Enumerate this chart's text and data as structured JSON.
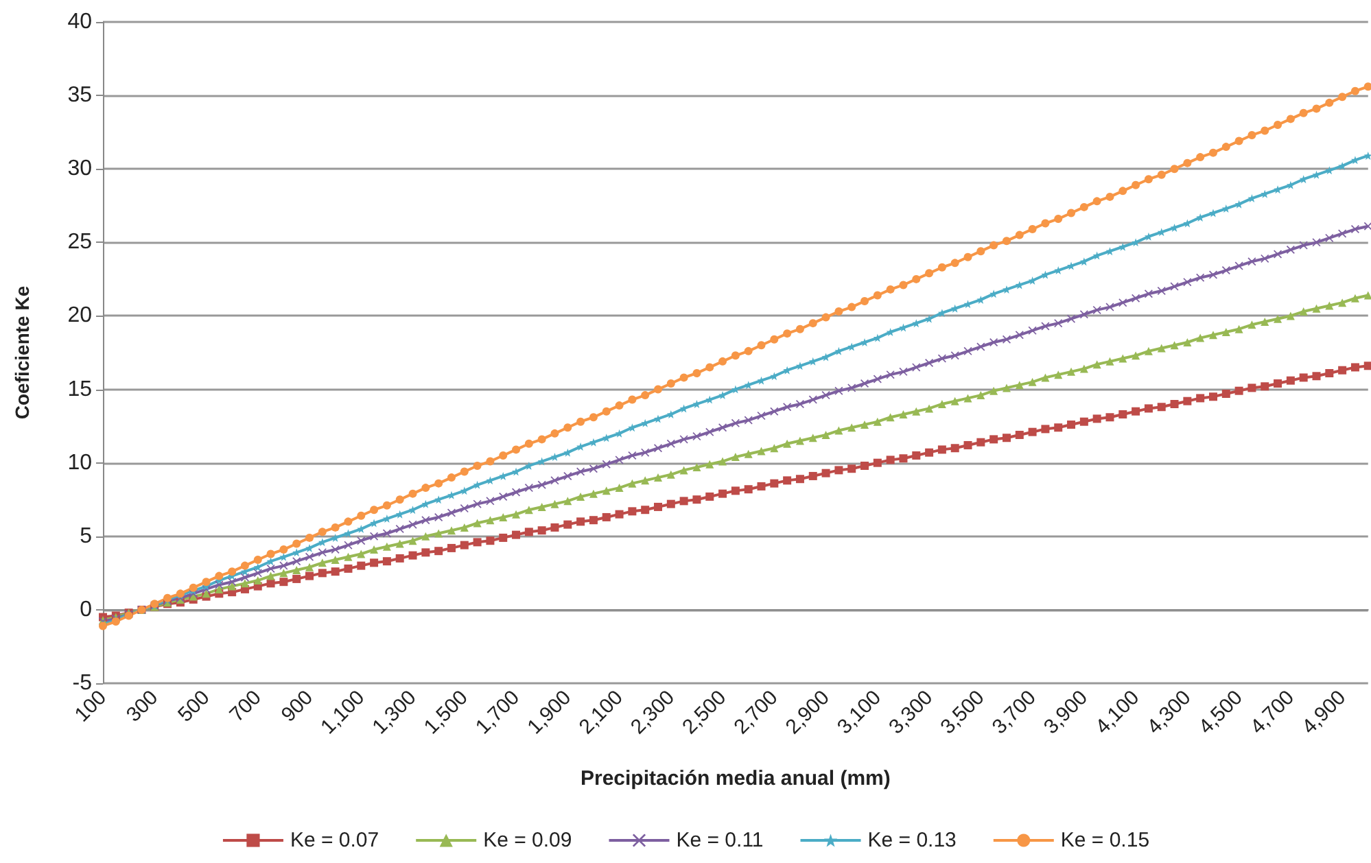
{
  "chart_data": {
    "type": "line",
    "xlabel": "Precipitación media anual (mm)",
    "ylabel": "Coeficiente Ke",
    "categories": [
      "100",
      null,
      null,
      null,
      "300",
      null,
      null,
      null,
      "500",
      null,
      null,
      null,
      "700",
      null,
      null,
      null,
      "900",
      null,
      null,
      null,
      "1,100",
      null,
      null,
      null,
      "1,300",
      null,
      null,
      null,
      "1,500",
      null,
      null,
      null,
      "1,700",
      null,
      null,
      null,
      "1,900",
      null,
      null,
      null,
      "2,100",
      null,
      null,
      null,
      "2,300",
      null,
      null,
      null,
      "2,500",
      null,
      null,
      null,
      "2,700",
      null,
      null,
      null,
      "2,900",
      null,
      null,
      null,
      "3,100",
      null,
      null,
      null,
      "3,300",
      null,
      null,
      null,
      "3,500",
      null,
      null,
      null,
      "3,700",
      null,
      null,
      null,
      "3,900",
      null,
      null,
      null,
      "4,100",
      null,
      null,
      null,
      "4,300",
      null,
      null,
      null,
      "4,500",
      null,
      null,
      null,
      "4,700",
      null,
      null,
      null,
      "4,900",
      null,
      null
    ],
    "ylim": [
      -5,
      40
    ],
    "yticks": [
      -5,
      0,
      5,
      10,
      15,
      20,
      25,
      30,
      35,
      40
    ],
    "grid": "y",
    "legend": "bottom",
    "series": [
      {
        "name": "Ke = 0.07",
        "color": "#be4b48",
        "marker": "square",
        "values": [
          -0.5,
          -0.4,
          -0.2,
          0,
          0.2,
          0.4,
          0.5,
          0.7,
          0.9,
          1.1,
          1.2,
          1.4,
          1.6,
          1.8,
          1.9,
          2.1,
          2.3,
          2.5,
          2.6,
          2.8,
          3.0,
          3.2,
          3.3,
          3.5,
          3.7,
          3.9,
          4.0,
          4.2,
          4.4,
          4.6,
          4.7,
          4.9,
          5.1,
          5.3,
          5.4,
          5.6,
          5.8,
          6.0,
          6.1,
          6.3,
          6.5,
          6.7,
          6.8,
          7.0,
          7.2,
          7.4,
          7.5,
          7.7,
          7.9,
          8.1,
          8.2,
          8.4,
          8.6,
          8.8,
          8.9,
          9.1,
          9.3,
          9.5,
          9.6,
          9.8,
          10.0,
          10.2,
          10.3,
          10.5,
          10.7,
          10.9,
          11.0,
          11.2,
          11.4,
          11.6,
          11.7,
          11.9,
          12.1,
          12.3,
          12.4,
          12.6,
          12.8,
          13.0,
          13.1,
          13.3,
          13.5,
          13.7,
          13.8,
          14.0,
          14.2,
          14.4,
          14.5,
          14.7,
          14.9,
          15.1,
          15.2,
          15.4,
          15.6,
          15.8,
          15.9,
          16.1,
          16.3,
          16.5,
          16.6
        ]
      },
      {
        "name": "Ke = 0.09",
        "color": "#98b954",
        "marker": "triangle",
        "values": [
          -0.7,
          -0.5,
          -0.2,
          0,
          0.2,
          0.5,
          0.7,
          0.9,
          1.1,
          1.4,
          1.6,
          1.8,
          2.0,
          2.3,
          2.5,
          2.7,
          2.9,
          3.2,
          3.4,
          3.6,
          3.8,
          4.1,
          4.3,
          4.5,
          4.7,
          5.0,
          5.2,
          5.4,
          5.6,
          5.9,
          6.1,
          6.3,
          6.5,
          6.8,
          7.0,
          7.2,
          7.4,
          7.7,
          7.9,
          8.1,
          8.3,
          8.6,
          8.8,
          9.0,
          9.2,
          9.5,
          9.7,
          9.9,
          10.1,
          10.4,
          10.6,
          10.8,
          11.0,
          11.3,
          11.5,
          11.7,
          11.9,
          12.2,
          12.4,
          12.6,
          12.8,
          13.1,
          13.3,
          13.5,
          13.7,
          14.0,
          14.2,
          14.4,
          14.6,
          14.9,
          15.1,
          15.3,
          15.5,
          15.8,
          16.0,
          16.2,
          16.4,
          16.7,
          16.9,
          17.1,
          17.3,
          17.6,
          17.8,
          18.0,
          18.2,
          18.5,
          18.7,
          18.9,
          19.1,
          19.4,
          19.6,
          19.8,
          20.0,
          20.3,
          20.5,
          20.7,
          20.9,
          21.2,
          21.4
        ]
      },
      {
        "name": "Ke = 0.11",
        "color": "#7d5fa0",
        "marker": "cross",
        "values": [
          -0.8,
          -0.6,
          -0.3,
          0,
          0.3,
          0.6,
          0.8,
          1.1,
          1.4,
          1.7,
          1.9,
          2.2,
          2.5,
          2.8,
          3.0,
          3.3,
          3.6,
          3.9,
          4.1,
          4.4,
          4.7,
          5.0,
          5.2,
          5.5,
          5.8,
          6.1,
          6.3,
          6.6,
          6.9,
          7.2,
          7.4,
          7.7,
          8.0,
          8.3,
          8.5,
          8.8,
          9.1,
          9.4,
          9.6,
          9.9,
          10.2,
          10.5,
          10.7,
          11.0,
          11.3,
          11.6,
          11.8,
          12.1,
          12.4,
          12.7,
          12.9,
          13.2,
          13.5,
          13.8,
          14.0,
          14.3,
          14.6,
          14.9,
          15.1,
          15.4,
          15.7,
          16.0,
          16.2,
          16.5,
          16.8,
          17.1,
          17.3,
          17.6,
          17.9,
          18.2,
          18.4,
          18.7,
          19.0,
          19.3,
          19.5,
          19.8,
          20.1,
          20.4,
          20.6,
          20.9,
          21.2,
          21.5,
          21.7,
          22.0,
          22.3,
          22.6,
          22.8,
          23.1,
          23.4,
          23.7,
          23.9,
          24.2,
          24.5,
          24.8,
          25.0,
          25.3,
          25.6,
          25.9,
          26.1
        ]
      },
      {
        "name": "Ke = 0.13",
        "color": "#4bacc6",
        "marker": "star",
        "values": [
          -1.0,
          -0.7,
          -0.3,
          0,
          0.3,
          0.7,
          1.0,
          1.3,
          1.6,
          2.0,
          2.3,
          2.6,
          2.9,
          3.3,
          3.6,
          3.9,
          4.2,
          4.6,
          4.9,
          5.2,
          5.5,
          5.9,
          6.2,
          6.5,
          6.8,
          7.2,
          7.5,
          7.8,
          8.1,
          8.5,
          8.8,
          9.1,
          9.4,
          9.8,
          10.1,
          10.4,
          10.7,
          11.1,
          11.4,
          11.7,
          12.0,
          12.4,
          12.7,
          13.0,
          13.3,
          13.7,
          14.0,
          14.3,
          14.6,
          15.0,
          15.3,
          15.6,
          15.9,
          16.3,
          16.6,
          16.9,
          17.2,
          17.6,
          17.9,
          18.2,
          18.5,
          18.9,
          19.2,
          19.5,
          19.8,
          20.2,
          20.5,
          20.8,
          21.1,
          21.5,
          21.8,
          22.1,
          22.4,
          22.8,
          23.1,
          23.4,
          23.7,
          24.1,
          24.4,
          24.7,
          25.0,
          25.4,
          25.7,
          26.0,
          26.3,
          26.7,
          27.0,
          27.3,
          27.6,
          28.0,
          28.3,
          28.6,
          28.9,
          29.3,
          29.6,
          29.9,
          30.2,
          30.6,
          30.9
        ]
      },
      {
        "name": "Ke = 0.15",
        "color": "#f79646",
        "marker": "circle",
        "values": [
          -1.1,
          -0.8,
          -0.4,
          0,
          0.4,
          0.8,
          1.1,
          1.5,
          1.9,
          2.3,
          2.6,
          3.0,
          3.4,
          3.8,
          4.1,
          4.5,
          4.9,
          5.3,
          5.6,
          6.0,
          6.4,
          6.8,
          7.1,
          7.5,
          7.9,
          8.3,
          8.6,
          9.0,
          9.4,
          9.8,
          10.1,
          10.5,
          10.9,
          11.3,
          11.6,
          12.0,
          12.4,
          12.8,
          13.1,
          13.5,
          13.9,
          14.3,
          14.6,
          15.0,
          15.4,
          15.8,
          16.1,
          16.5,
          16.9,
          17.3,
          17.6,
          18.0,
          18.4,
          18.8,
          19.1,
          19.5,
          19.9,
          20.3,
          20.6,
          21.0,
          21.4,
          21.8,
          22.1,
          22.5,
          22.9,
          23.3,
          23.6,
          24.0,
          24.4,
          24.8,
          25.1,
          25.5,
          25.9,
          26.3,
          26.6,
          27.0,
          27.4,
          27.8,
          28.1,
          28.5,
          28.9,
          29.3,
          29.6,
          30.0,
          30.4,
          30.8,
          31.1,
          31.5,
          31.9,
          32.3,
          32.6,
          33.0,
          33.4,
          33.8,
          34.1,
          34.5,
          34.9,
          35.3,
          35.6
        ]
      }
    ]
  }
}
